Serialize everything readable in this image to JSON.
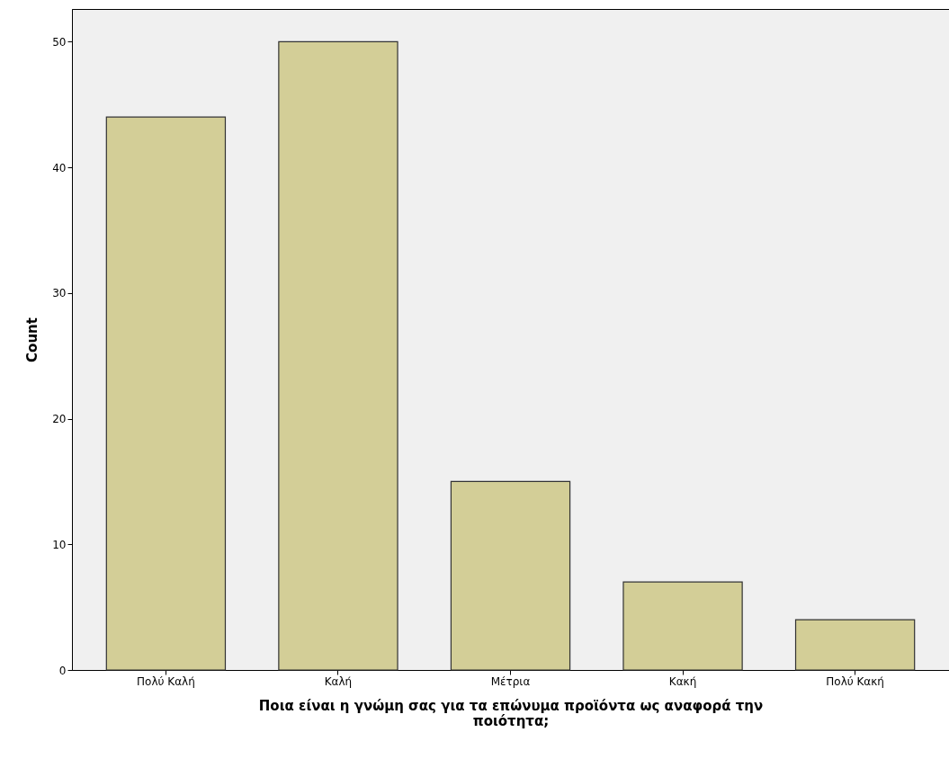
{
  "chart_data": {
    "type": "bar",
    "xlabel": "Ποια είναι η γνώμη σας για τα επώνυμα προϊόντα ως αναφορά την ποιότητα;",
    "ylabel": "Count",
    "categories": [
      "Πολύ Καλή",
      "Καλή",
      "Μέτρια",
      "Κακή",
      "Πολύ Κακή"
    ],
    "values": [
      44,
      50,
      15,
      7,
      4
    ],
    "color": "#d3ce97",
    "ylim": [
      0,
      52.6
    ],
    "yticks": [
      0,
      10,
      20,
      30,
      40,
      50
    ],
    "grid": false
  }
}
